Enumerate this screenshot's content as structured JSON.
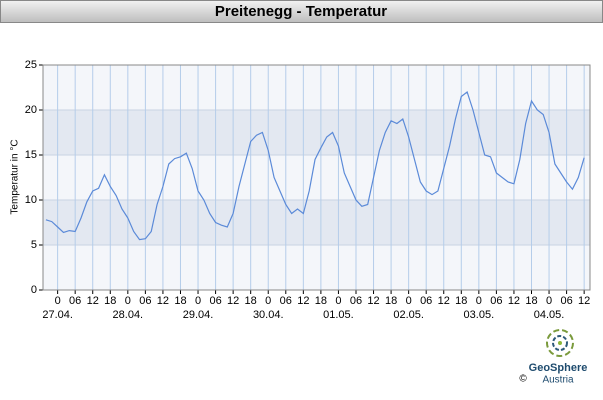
{
  "chart_data": {
    "type": "line",
    "title": "Preitenegg - Temperatur",
    "y_label": "Temperatur in °C",
    "color": "#5b8ad8",
    "grid": true,
    "x": [
      -4,
      -2,
      0,
      2,
      4,
      6,
      8,
      10,
      12,
      14,
      16,
      18,
      20,
      22,
      24,
      26,
      28,
      30,
      32,
      34,
      36,
      38,
      40,
      42,
      44,
      46,
      48,
      50,
      52,
      54,
      56,
      58,
      60,
      62,
      64,
      66,
      68,
      70,
      72,
      74,
      76,
      78,
      80,
      82,
      84,
      86,
      88,
      90,
      92,
      94,
      96,
      98,
      100,
      102,
      104,
      106,
      108,
      110,
      112,
      114,
      116,
      118,
      120,
      122,
      124,
      126,
      128,
      130,
      132,
      134,
      136,
      138,
      140,
      142,
      144,
      146,
      148,
      150,
      152,
      154,
      156,
      158,
      160,
      162,
      164,
      166,
      168,
      170,
      172,
      174,
      176,
      178,
      180
    ],
    "values": [
      7.8,
      7.6,
      7.0,
      6.4,
      6.6,
      6.5,
      8.0,
      9.8,
      11.0,
      11.3,
      12.8,
      11.5,
      10.5,
      9.0,
      8.0,
      6.5,
      5.6,
      5.7,
      6.5,
      9.5,
      11.5,
      14.0,
      14.6,
      14.8,
      15.2,
      13.5,
      11.0,
      10.0,
      8.5,
      7.5,
      7.2,
      7.0,
      8.5,
      11.5,
      14.0,
      16.5,
      17.2,
      17.5,
      15.5,
      12.5,
      11.0,
      9.5,
      8.5,
      9.0,
      8.5,
      11.0,
      14.5,
      15.8,
      17.0,
      17.5,
      16.0,
      13.0,
      11.5,
      10.0,
      9.3,
      9.5,
      12.5,
      15.5,
      17.5,
      18.8,
      18.5,
      19.0,
      17.0,
      14.5,
      12.0,
      11.0,
      10.6,
      11.0,
      13.5,
      16.0,
      19.0,
      21.5,
      22.0,
      20.0,
      17.5,
      15.0,
      14.8,
      13.0,
      12.5,
      12.0,
      11.8,
      14.5,
      18.5,
      21.0,
      20.0,
      19.5,
      17.5,
      14.0,
      13.0,
      12.0,
      11.2,
      12.5,
      14.7
    ],
    "xlim": [
      -5,
      182
    ],
    "ylim": [
      0,
      25
    ],
    "yticks": [
      0,
      5,
      10,
      15,
      20,
      25
    ],
    "xticks": [
      0,
      {
        "value": 6,
        "label": "06"
      },
      12,
      18,
      {
        "value": 24,
        "label": "0"
      },
      {
        "value": 30,
        "label": "06"
      },
      {
        "value": 36,
        "label": "12"
      },
      {
        "value": 42,
        "label": "18"
      },
      {
        "value": 48,
        "label": "0"
      },
      {
        "value": 54,
        "label": "06"
      },
      {
        "value": 60,
        "label": "12"
      },
      {
        "value": 66,
        "label": "18"
      },
      {
        "value": 72,
        "label": "0"
      },
      {
        "value": 78,
        "label": "06"
      },
      {
        "value": 84,
        "label": "12"
      },
      {
        "value": 90,
        "label": "18"
      },
      {
        "value": 96,
        "label": "0"
      },
      {
        "value": 102,
        "label": "06"
      },
      {
        "value": 108,
        "label": "12"
      },
      {
        "value": 114,
        "label": "18"
      },
      {
        "value": 120,
        "label": "0"
      },
      {
        "value": 126,
        "label": "06"
      },
      {
        "value": 132,
        "label": "12"
      },
      {
        "value": 138,
        "label": "18"
      },
      {
        "value": 144,
        "label": "0"
      },
      {
        "value": 150,
        "label": "06"
      },
      {
        "value": 156,
        "label": "12"
      },
      {
        "value": 162,
        "label": "18"
      },
      {
        "value": 168,
        "label": "0"
      },
      {
        "value": 174,
        "label": "06"
      },
      {
        "value": 180,
        "label": "12"
      }
    ],
    "date_labels": [
      {
        "value": 0,
        "label": "27.04."
      },
      {
        "value": 24,
        "label": "28.04."
      },
      {
        "value": 48,
        "label": "29.04."
      },
      {
        "value": 72,
        "label": "30.04."
      },
      {
        "value": 96,
        "label": "01.05."
      },
      {
        "value": 120,
        "label": "02.05."
      },
      {
        "value": 144,
        "label": "03.05."
      },
      {
        "value": 168,
        "label": "04.05."
      }
    ]
  },
  "logo": {
    "name": "GeoSphere",
    "sub": "Austria",
    "copyright": "©"
  }
}
